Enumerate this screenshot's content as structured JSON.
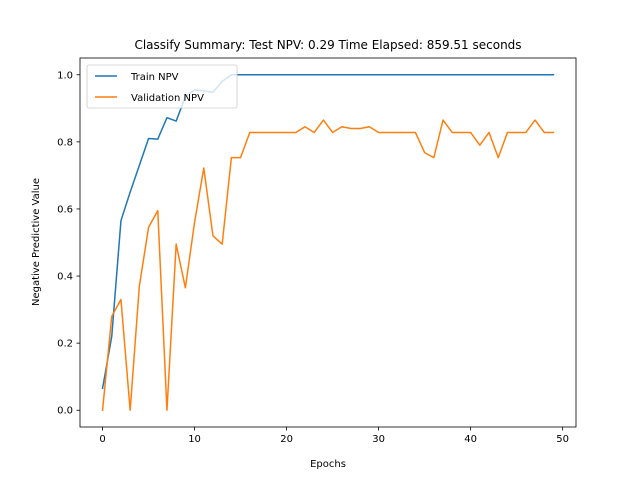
{
  "chart_data": {
    "type": "line",
    "title": "Classify Summary: Test NPV: 0.29 Time Elapsed: 859.51 seconds",
    "xlabel": "Epochs",
    "ylabel": "Negative Predictive Value",
    "xlim": [
      -2.45,
      51.45
    ],
    "ylim": [
      -0.05,
      1.05
    ],
    "xticks": [
      "0",
      "10",
      "20",
      "30",
      "40",
      "50"
    ],
    "yticks": [
      "0.0",
      "0.2",
      "0.4",
      "0.6",
      "0.8",
      "1.0"
    ],
    "grid": false,
    "legend_position": "upper-left",
    "x": [
      0,
      1,
      2,
      3,
      4,
      5,
      6,
      7,
      8,
      9,
      10,
      11,
      12,
      13,
      14,
      15,
      16,
      17,
      18,
      19,
      20,
      21,
      22,
      23,
      24,
      25,
      26,
      27,
      28,
      29,
      30,
      31,
      32,
      33,
      34,
      35,
      36,
      37,
      38,
      39,
      40,
      41,
      42,
      43,
      44,
      45,
      46,
      47,
      48,
      49
    ],
    "series": [
      {
        "name": "Train NPV",
        "color": "#1f77b4",
        "values": [
          0.065,
          0.22,
          0.565,
          0.65,
          0.73,
          0.81,
          0.808,
          0.872,
          0.862,
          0.935,
          0.955,
          0.952,
          0.948,
          0.98,
          1.0,
          1.0,
          1.0,
          1.0,
          1.0,
          1.0,
          1.0,
          1.0,
          1.0,
          1.0,
          1.0,
          1.0,
          1.0,
          1.0,
          1.0,
          1.0,
          1.0,
          1.0,
          1.0,
          1.0,
          1.0,
          1.0,
          1.0,
          1.0,
          1.0,
          1.0,
          1.0,
          1.0,
          1.0,
          1.0,
          1.0,
          1.0,
          1.0,
          1.0,
          1.0,
          1.0
        ]
      },
      {
        "name": "Validation NPV",
        "color": "#ff7f0e",
        "values": [
          0.0,
          0.28,
          0.33,
          0.0,
          0.37,
          0.545,
          0.595,
          0.0,
          0.495,
          0.365,
          0.56,
          0.722,
          0.52,
          0.495,
          0.753,
          0.753,
          0.828,
          0.828,
          0.828,
          0.828,
          0.828,
          0.828,
          0.845,
          0.828,
          0.865,
          0.828,
          0.845,
          0.84,
          0.84,
          0.845,
          0.828,
          0.828,
          0.828,
          0.828,
          0.828,
          0.768,
          0.753,
          0.865,
          0.828,
          0.828,
          0.828,
          0.79,
          0.828,
          0.753,
          0.828,
          0.828,
          0.828,
          0.865,
          0.828,
          0.828
        ]
      }
    ]
  }
}
